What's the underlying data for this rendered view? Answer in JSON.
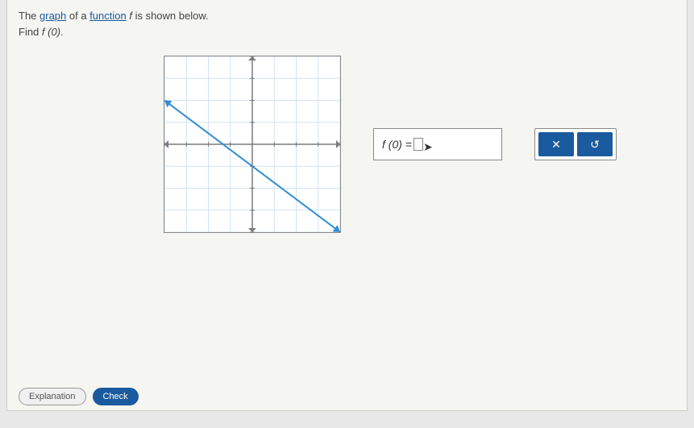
{
  "question": {
    "line1_prefix": "The ",
    "link1": "graph",
    "line1_mid": " of a ",
    "link2": "function",
    "line1_suffix_italic": " f ",
    "line1_end": "is shown below.",
    "line2_prefix": "Find ",
    "line2_math": "f (0)",
    "line2_end": "."
  },
  "graph": {
    "xmin": -8,
    "xmax": 8,
    "ymin": -8,
    "ymax": 8,
    "grid_step": 2,
    "grid_color": "#cfe3f5",
    "axis_color": "#7a7a7a",
    "line_color": "#2f8fd4",
    "line_width": 2,
    "arrow_size": 5,
    "function_points": [
      [
        -8,
        4
      ],
      [
        8,
        -8
      ]
    ],
    "bg": "#ffffff"
  },
  "answer": {
    "prefix": "f (0) = "
  },
  "actions": {
    "clear": "✕",
    "reset": "↺"
  },
  "footer": {
    "explanation": "Explanation",
    "check": "Check"
  }
}
